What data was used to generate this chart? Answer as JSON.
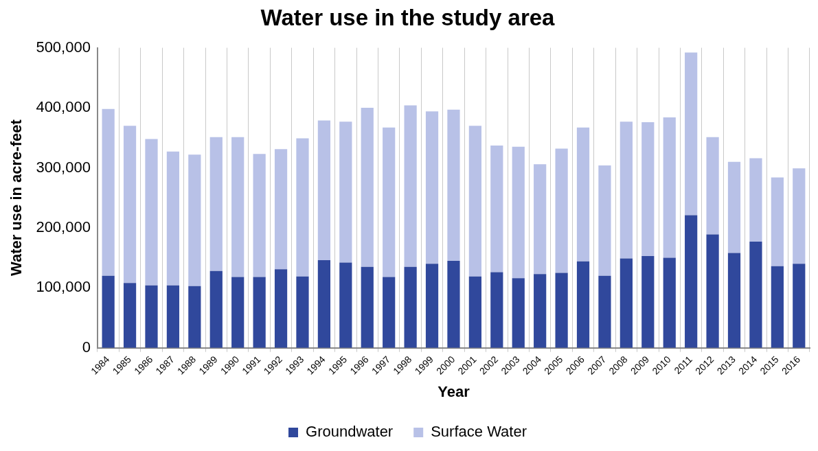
{
  "chart_data": {
    "type": "bar",
    "title": "Water use in the study area",
    "xlabel": "Year",
    "ylabel": "Water use in acre-feet",
    "categories": [
      "1984",
      "1985",
      "1986",
      "1987",
      "1988",
      "1989",
      "1990",
      "1991",
      "1992",
      "1993",
      "1994",
      "1995",
      "1996",
      "1997",
      "1998",
      "1999",
      "2000",
      "2001",
      "2002",
      "2003",
      "2004",
      "2005",
      "2006",
      "2007",
      "2008",
      "2009",
      "2010",
      "2011",
      "2012",
      "2013",
      "2014",
      "2015",
      "2016"
    ],
    "stacked": true,
    "series": [
      {
        "name": "Groundwater",
        "color": "#30489c",
        "values": [
          120000,
          108000,
          104000,
          104000,
          103000,
          128000,
          118000,
          118000,
          131000,
          119000,
          146000,
          142000,
          135000,
          118000,
          135000,
          140000,
          145000,
          119000,
          126000,
          116000,
          123000,
          125000,
          144000,
          120000,
          149000,
          153000,
          150000,
          221000,
          189000,
          158000,
          177000,
          136000,
          140000
        ]
      },
      {
        "name": "Surface Water",
        "color": "#b8c1e7",
        "values": [
          278000,
          262000,
          244000,
          223000,
          219000,
          223000,
          233000,
          205000,
          200000,
          230000,
          233000,
          235000,
          265000,
          249000,
          269000,
          254000,
          252000,
          251000,
          211000,
          219000,
          183000,
          207000,
          223000,
          184000,
          228000,
          223000,
          234000,
          271000,
          162000,
          152000,
          139000,
          148000,
          159000
        ]
      }
    ],
    "ylim": [
      0,
      500000
    ],
    "yticks": [
      {
        "value": 0,
        "label": "0"
      },
      {
        "value": 100000,
        "label": "100,000"
      },
      {
        "value": 200000,
        "label": "200,000"
      },
      {
        "value": 300000,
        "label": "300,000"
      },
      {
        "value": 400000,
        "label": "400,000"
      },
      {
        "value": 500000,
        "label": "500,000"
      }
    ],
    "grid": "x",
    "legend": "bottom"
  }
}
